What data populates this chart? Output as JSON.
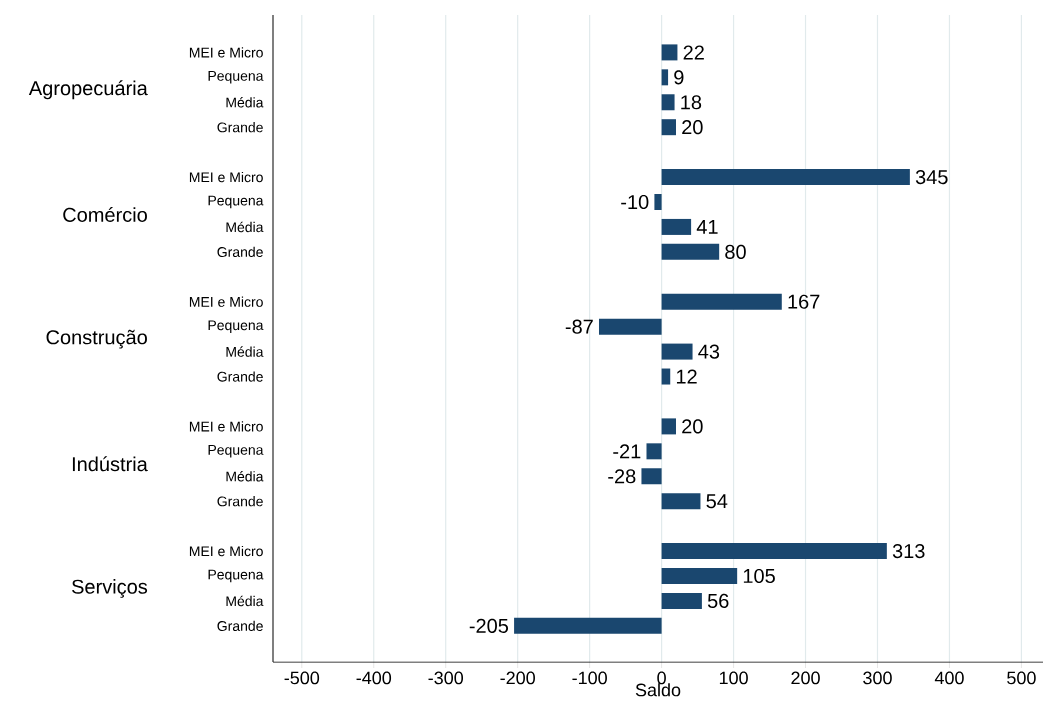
{
  "chart_data": {
    "type": "bar",
    "orientation": "horizontal",
    "xlabel": "Saldo",
    "categories": [
      "MEI e Micro",
      "Pequena",
      "Média",
      "Grande",
      null,
      "MEI e Micro",
      "Pequena",
      "Média",
      "Grande",
      null,
      "MEI e Micro",
      "Pequena",
      "Média",
      "Grande",
      null,
      "MEI e Micro",
      "Pequena",
      "Média",
      "Grande",
      null,
      "MEI e Micro",
      "Pequena",
      "Média",
      "Grande"
    ],
    "values": [
      22,
      9,
      18,
      20,
      null,
      345,
      -10,
      41,
      80,
      null,
      167,
      -87,
      43,
      12,
      null,
      20,
      -21,
      -28,
      54,
      null,
      313,
      105,
      56,
      -205
    ],
    "color": "#1a476f",
    "data_labels": true,
    "grid": "x",
    "xlim": [
      -540,
      530
    ],
    "xticks": [
      -500,
      -400,
      -300,
      -200,
      -100,
      0,
      100,
      200,
      300,
      400,
      500
    ],
    "annotations": [
      "Agropecuária",
      "Comércio",
      "Construção",
      "Indústria",
      "Serviços"
    ]
  }
}
